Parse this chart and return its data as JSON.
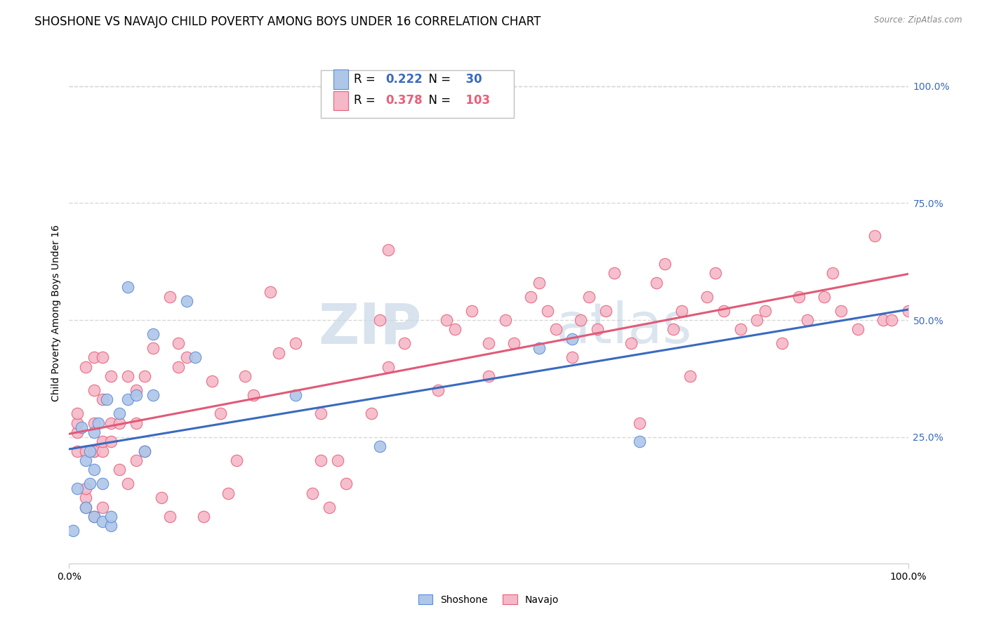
{
  "title": "SHOSHONE VS NAVAJO CHILD POVERTY AMONG BOYS UNDER 16 CORRELATION CHART",
  "source": "Source: ZipAtlas.com",
  "ylabel": "Child Poverty Among Boys Under 16",
  "background_color": "#ffffff",
  "watermark_zip": "ZIP",
  "watermark_atlas": "atlas",
  "shoshone_color": "#aec6e8",
  "navajo_color": "#f4b8c8",
  "shoshone_edge_color": "#5b8dd9",
  "navajo_edge_color": "#e8607a",
  "shoshone_line_color": "#3a6abf",
  "navajo_line_color": "#e05a78",
  "shoshone_R": 0.222,
  "shoshone_N": 30,
  "navajo_R": 0.378,
  "navajo_N": 103,
  "shoshone_x": [
    0.005,
    0.01,
    0.015,
    0.02,
    0.02,
    0.025,
    0.025,
    0.03,
    0.03,
    0.03,
    0.035,
    0.04,
    0.04,
    0.045,
    0.05,
    0.05,
    0.06,
    0.07,
    0.07,
    0.08,
    0.09,
    0.1,
    0.1,
    0.14,
    0.15,
    0.27,
    0.37,
    0.56,
    0.6,
    0.68
  ],
  "shoshone_y": [
    0.05,
    0.14,
    0.27,
    0.1,
    0.2,
    0.15,
    0.22,
    0.08,
    0.18,
    0.26,
    0.28,
    0.07,
    0.15,
    0.33,
    0.06,
    0.08,
    0.3,
    0.33,
    0.57,
    0.34,
    0.22,
    0.34,
    0.47,
    0.54,
    0.42,
    0.34,
    0.23,
    0.44,
    0.46,
    0.24
  ],
  "navajo_x": [
    0.01,
    0.01,
    0.01,
    0.01,
    0.02,
    0.02,
    0.02,
    0.02,
    0.02,
    0.03,
    0.03,
    0.03,
    0.03,
    0.03,
    0.03,
    0.04,
    0.04,
    0.04,
    0.04,
    0.04,
    0.05,
    0.05,
    0.05,
    0.06,
    0.06,
    0.07,
    0.07,
    0.08,
    0.08,
    0.08,
    0.09,
    0.09,
    0.1,
    0.11,
    0.12,
    0.12,
    0.13,
    0.13,
    0.14,
    0.16,
    0.17,
    0.18,
    0.19,
    0.2,
    0.21,
    0.22,
    0.24,
    0.25,
    0.27,
    0.29,
    0.3,
    0.3,
    0.31,
    0.32,
    0.33,
    0.35,
    0.36,
    0.37,
    0.38,
    0.38,
    0.4,
    0.44,
    0.45,
    0.46,
    0.48,
    0.5,
    0.5,
    0.52,
    0.53,
    0.55,
    0.56,
    0.57,
    0.58,
    0.6,
    0.61,
    0.62,
    0.63,
    0.64,
    0.65,
    0.67,
    0.68,
    0.7,
    0.71,
    0.72,
    0.73,
    0.74,
    0.76,
    0.77,
    0.78,
    0.8,
    0.82,
    0.83,
    0.85,
    0.87,
    0.88,
    0.9,
    0.91,
    0.92,
    0.94,
    0.96,
    0.97,
    0.98,
    1.0
  ],
  "navajo_y": [
    0.22,
    0.26,
    0.28,
    0.3,
    0.1,
    0.12,
    0.14,
    0.22,
    0.4,
    0.08,
    0.22,
    0.22,
    0.28,
    0.35,
    0.42,
    0.1,
    0.22,
    0.24,
    0.33,
    0.42,
    0.24,
    0.28,
    0.38,
    0.18,
    0.28,
    0.15,
    0.38,
    0.2,
    0.28,
    0.35,
    0.22,
    0.38,
    0.44,
    0.12,
    0.55,
    0.08,
    0.4,
    0.45,
    0.42,
    0.08,
    0.37,
    0.3,
    0.13,
    0.2,
    0.38,
    0.34,
    0.56,
    0.43,
    0.45,
    0.13,
    0.2,
    0.3,
    0.1,
    0.2,
    0.15,
    1.0,
    0.3,
    0.5,
    0.4,
    0.65,
    0.45,
    0.35,
    0.5,
    0.48,
    0.52,
    0.45,
    0.38,
    0.5,
    0.45,
    0.55,
    0.58,
    0.52,
    0.48,
    0.42,
    0.5,
    0.55,
    0.48,
    0.52,
    0.6,
    0.45,
    0.28,
    0.58,
    0.62,
    0.48,
    0.52,
    0.38,
    0.55,
    0.6,
    0.52,
    0.48,
    0.5,
    0.52,
    0.45,
    0.55,
    0.5,
    0.55,
    0.6,
    0.52,
    0.48,
    0.68,
    0.5,
    0.5,
    0.52
  ],
  "xlim": [
    0.0,
    1.0
  ],
  "ylim": [
    -0.02,
    1.05
  ],
  "xtick_positions": [
    0.0,
    1.0
  ],
  "xtick_labels": [
    "0.0%",
    "100.0%"
  ],
  "ytick_positions": [
    0.25,
    0.5,
    0.75,
    1.0
  ],
  "ytick_labels": [
    "25.0%",
    "50.0%",
    "75.0%",
    "100.0%"
  ],
  "grid_color": "#d8d8d8",
  "tick_color": "#3a6abf",
  "title_fontsize": 12,
  "axis_label_fontsize": 10,
  "tick_fontsize": 10,
  "legend_fontsize": 12
}
